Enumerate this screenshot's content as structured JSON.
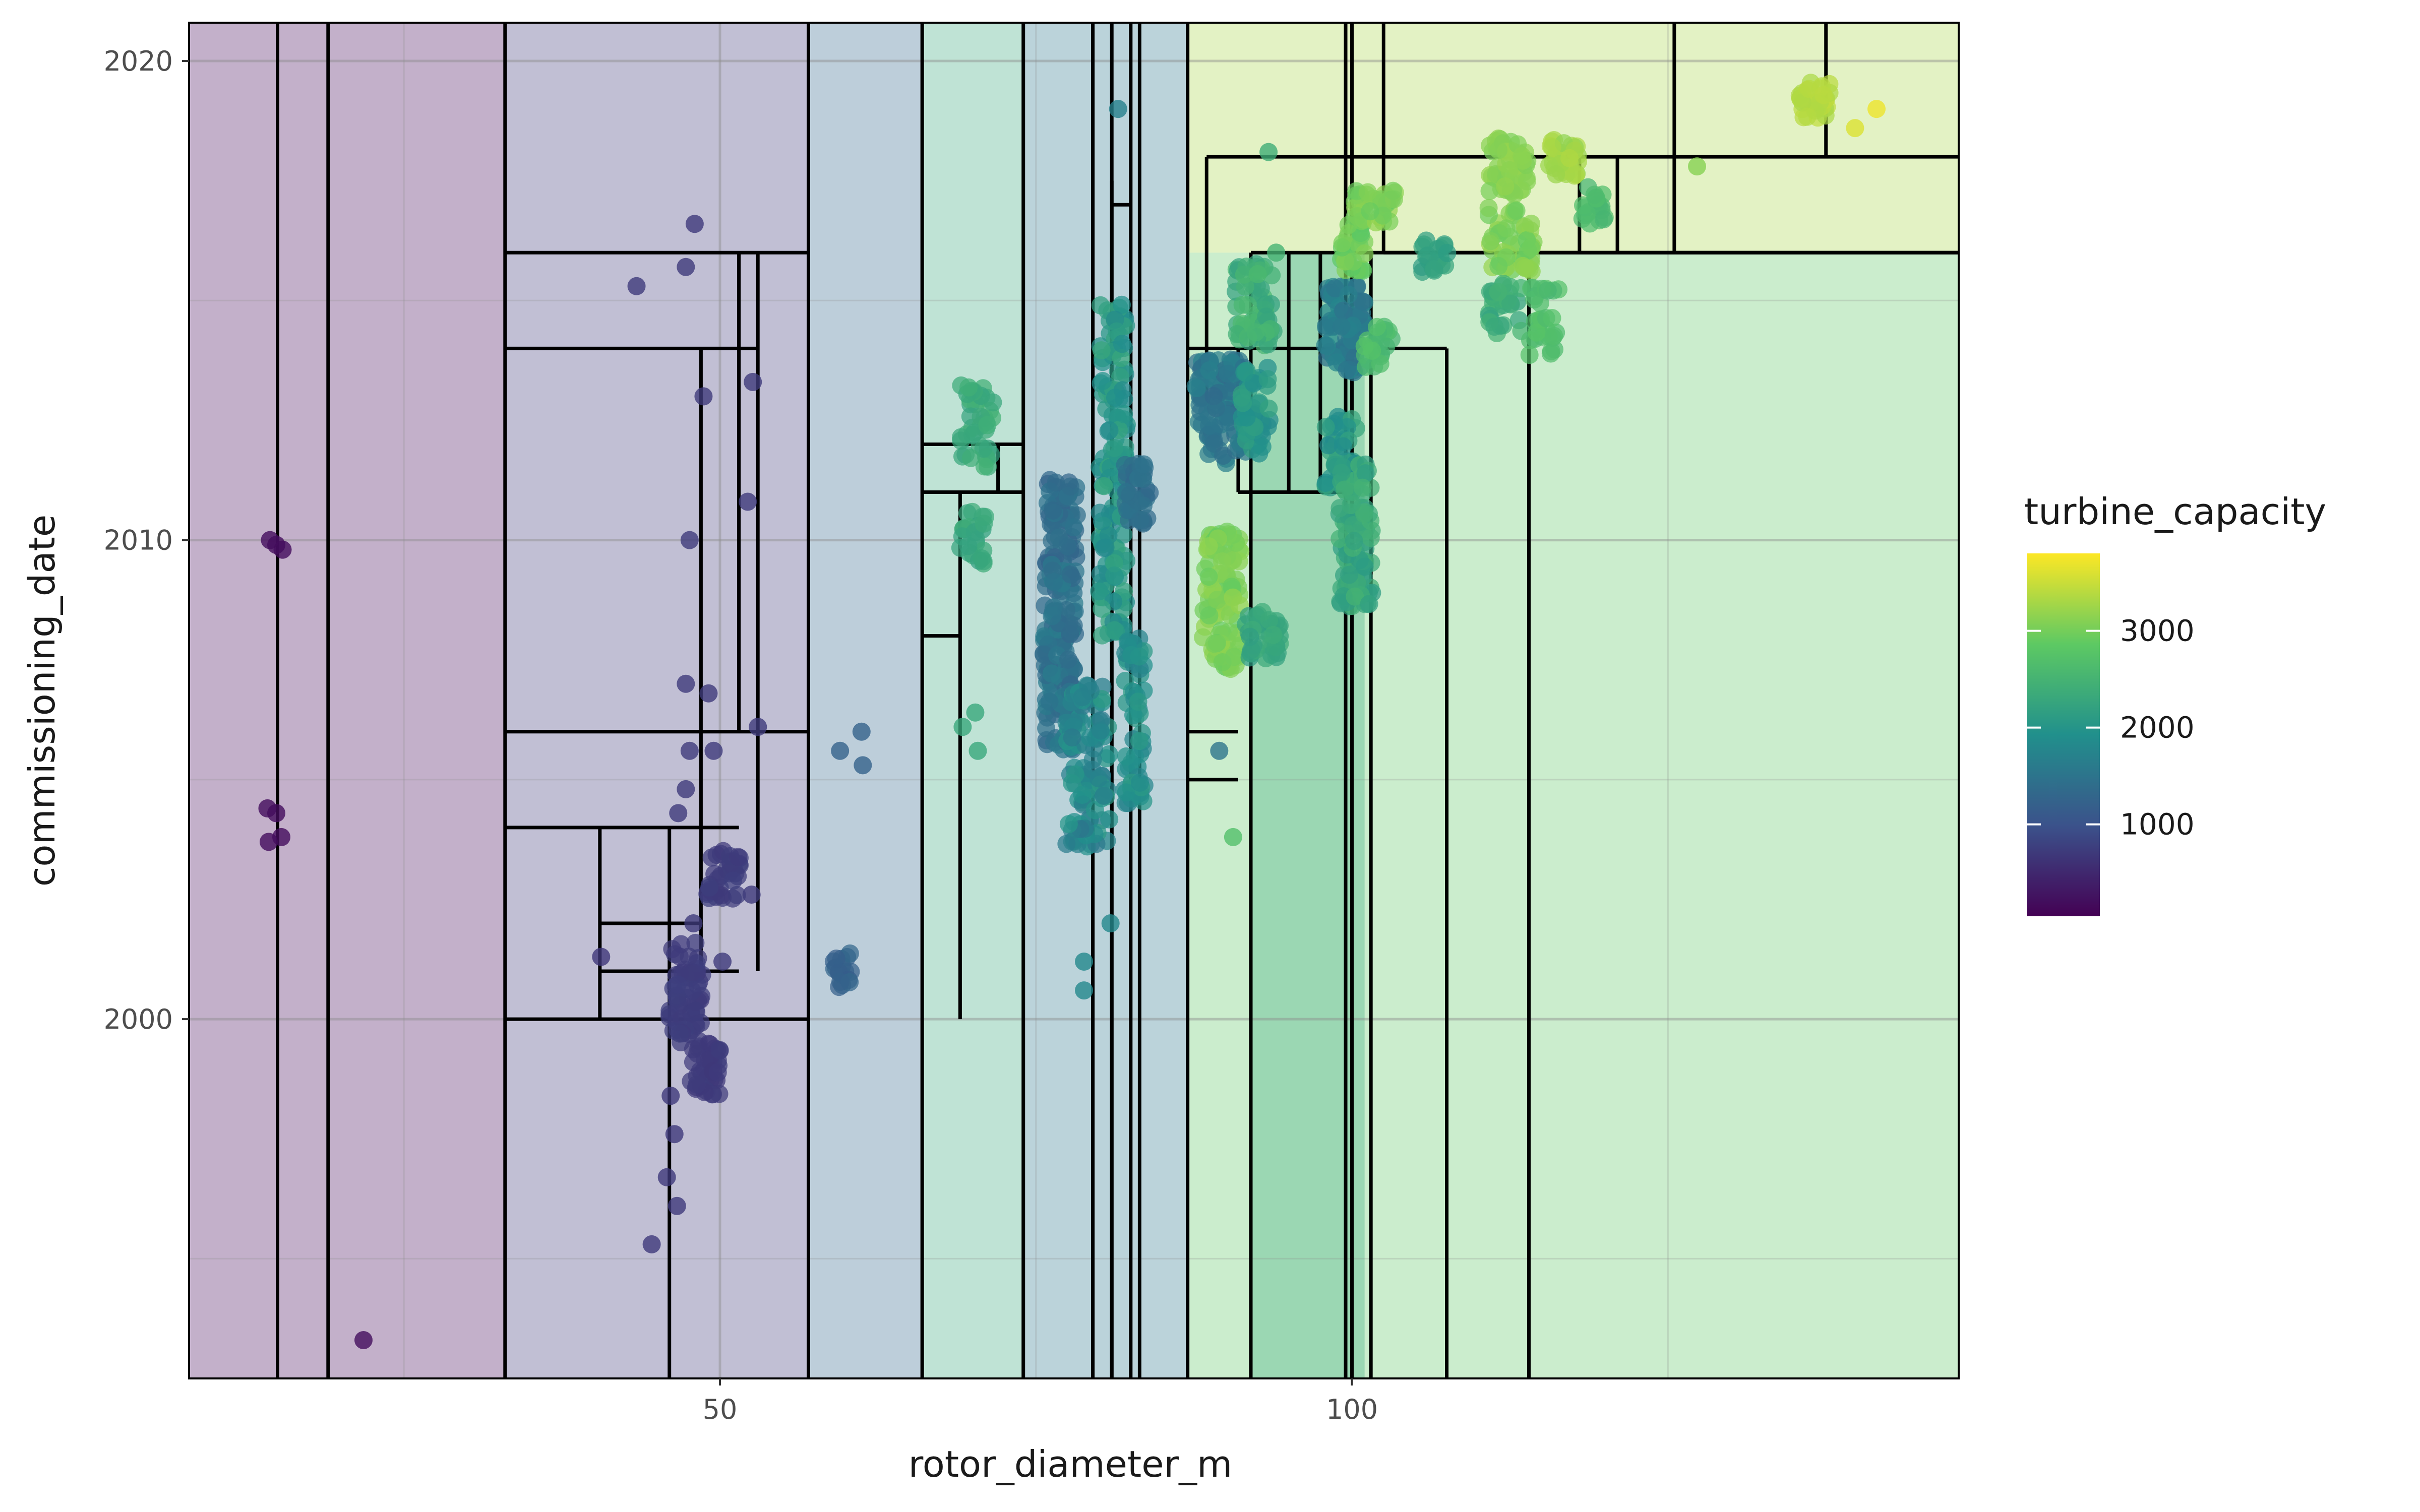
{
  "chart_data": {
    "type": "scatter",
    "title": "",
    "xlabel": "rotor_diameter_m",
    "ylabel": "commissioning_date",
    "xlim": [
      8,
      148
    ],
    "ylim": [
      1992.5,
      2020.8
    ],
    "x_ticks": [
      {
        "value": 50,
        "label": "50"
      },
      {
        "value": 100,
        "label": "100"
      }
    ],
    "y_ticks": [
      {
        "value": 2000,
        "label": "2000"
      },
      {
        "value": 2010,
        "label": "2010"
      },
      {
        "value": 2020,
        "label": "2020"
      }
    ],
    "x_minor_grid": [
      25,
      75,
      125
    ],
    "y_minor_grid": [
      1995,
      2005,
      2015
    ],
    "grid": true,
    "color_scale": "viridis",
    "color_stops": [
      "#440154",
      "#3b528b",
      "#21908c",
      "#5dc963",
      "#fde725"
    ],
    "legend": {
      "title": "turbine_capacity",
      "position": "right",
      "range": [
        50,
        3800
      ],
      "breaks": [
        {
          "value": 1000,
          "label": "1000"
        },
        {
          "value": 2000,
          "label": "2000"
        },
        {
          "value": 3000,
          "label": "3000"
        }
      ]
    },
    "partition_rects": [
      {
        "x0": 8,
        "x1": 33,
        "y0": 1992.5,
        "y1": 2020.8,
        "fill": 150
      },
      {
        "x0": 33,
        "x1": 57,
        "y0": 1992.5,
        "y1": 2020.8,
        "fill": 700
      },
      {
        "x0": 57,
        "x1": 66,
        "y0": 1992.5,
        "y1": 2020.8,
        "fill": 1300
      },
      {
        "x0": 66,
        "x1": 74,
        "y0": 1992.5,
        "y1": 2020.8,
        "fill": 2300
      },
      {
        "x0": 74,
        "x1": 87,
        "y0": 1992.5,
        "y1": 2020.8,
        "fill": 1550
      },
      {
        "x0": 87,
        "x1": 148,
        "y0": 1992.5,
        "y1": 2016,
        "fill": 2850
      },
      {
        "x0": 92,
        "x1": 101,
        "y0": 1992.5,
        "y1": 2016,
        "fill": 2300
      },
      {
        "x0": 87,
        "x1": 148,
        "y0": 2016,
        "y1": 2020.8,
        "fill": 3300
      }
    ],
    "partition_vlines": [
      {
        "x": 15,
        "y0": 1992.5,
        "y1": 2020.8
      },
      {
        "x": 19,
        "y0": 1992.5,
        "y1": 2020.8
      },
      {
        "x": 33,
        "y0": 1992.5,
        "y1": 2020.8
      },
      {
        "x": 57,
        "y0": 1992.5,
        "y1": 2020.8
      },
      {
        "x": 66,
        "y0": 1992.5,
        "y1": 2020.8
      },
      {
        "x": 74,
        "y0": 1992.5,
        "y1": 2020.8
      },
      {
        "x": 79.5,
        "y0": 1992.5,
        "y1": 2020.8
      },
      {
        "x": 81,
        "y0": 1992.5,
        "y1": 2020.8
      },
      {
        "x": 82.5,
        "y0": 1992.5,
        "y1": 2020.8
      },
      {
        "x": 83.2,
        "y0": 1992.5,
        "y1": 2020.8
      },
      {
        "x": 87,
        "y0": 1992.5,
        "y1": 2020.8
      },
      {
        "x": 99.5,
        "y0": 1992.5,
        "y1": 2020.8
      },
      {
        "x": 100,
        "y0": 1992.5,
        "y1": 2020.8
      },
      {
        "x": 101.5,
        "y0": 1992.5,
        "y1": 2016
      },
      {
        "x": 107.5,
        "y0": 1992.5,
        "y1": 2014
      },
      {
        "x": 114,
        "y0": 1992.5,
        "y1": 2016
      },
      {
        "x": 92,
        "y0": 1992.5,
        "y1": 2016
      },
      {
        "x": 46,
        "y0": 1992.5,
        "y1": 2004
      },
      {
        "x": 48.5,
        "y0": 2001,
        "y1": 2014
      },
      {
        "x": 51.5,
        "y0": 2006,
        "y1": 2016
      },
      {
        "x": 53,
        "y0": 2001,
        "y1": 2016
      },
      {
        "x": 40.5,
        "y0": 2000,
        "y1": 2004
      },
      {
        "x": 69,
        "y0": 2000,
        "y1": 2011
      },
      {
        "x": 72,
        "y0": 2011,
        "y1": 2012
      },
      {
        "x": 81,
        "y0": 1992.5,
        "y1": 2017.5
      },
      {
        "x": 88.5,
        "y0": 2013,
        "y1": 2018
      },
      {
        "x": 91,
        "y0": 2011,
        "y1": 2014
      },
      {
        "x": 95,
        "y0": 2011,
        "y1": 2016
      },
      {
        "x": 102.5,
        "y0": 2016,
        "y1": 2020.8
      },
      {
        "x": 125.5,
        "y0": 2016,
        "y1": 2020.8
      },
      {
        "x": 137.5,
        "y0": 2018,
        "y1": 2020.8
      },
      {
        "x": 118,
        "y0": 2016,
        "y1": 2018
      },
      {
        "x": 121,
        "y0": 2016,
        "y1": 2018
      },
      {
        "x": 97.5,
        "y0": 2011,
        "y1": 2016
      }
    ],
    "partition_hlines": [
      {
        "y": 2016,
        "x0": 33,
        "x1": 57
      },
      {
        "y": 2014,
        "x0": 33,
        "x1": 53
      },
      {
        "y": 2006,
        "x0": 33,
        "x1": 57
      },
      {
        "y": 2004,
        "x0": 33,
        "x1": 51.5
      },
      {
        "y": 2002,
        "x0": 40.5,
        "x1": 48.5
      },
      {
        "y": 2001,
        "x0": 40.5,
        "x1": 51.5
      },
      {
        "y": 2000,
        "x0": 33,
        "x1": 57
      },
      {
        "y": 2012,
        "x0": 66,
        "x1": 74
      },
      {
        "y": 2011,
        "x0": 66,
        "x1": 74
      },
      {
        "y": 2008,
        "x0": 66,
        "x1": 69
      },
      {
        "y": 2017,
        "x0": 81,
        "x1": 82.5
      },
      {
        "y": 2006,
        "x0": 87,
        "x1": 91
      },
      {
        "y": 2005,
        "x0": 87,
        "x1": 91
      },
      {
        "y": 2014,
        "x0": 87,
        "x1": 107.5
      },
      {
        "y": 2016,
        "x0": 92,
        "x1": 148
      },
      {
        "y": 2018,
        "x0": 88.5,
        "x1": 148
      },
      {
        "y": 2016,
        "x0": 102.5,
        "x1": 148
      },
      {
        "y": 2011,
        "x0": 91,
        "x1": 99.5
      }
    ],
    "series": [
      {
        "name": "",
        "points": [
          {
            "x": 14.4,
            "y": 2010.0,
            "v": 180
          },
          {
            "x": 14.9,
            "y": 2009.9,
            "v": 180
          },
          {
            "x": 15.4,
            "y": 2009.8,
            "v": 180
          },
          {
            "x": 14.2,
            "y": 2004.4,
            "v": 180
          },
          {
            "x": 14.9,
            "y": 2004.3,
            "v": 180
          },
          {
            "x": 14.3,
            "y": 2003.7,
            "v": 180
          },
          {
            "x": 15.3,
            "y": 2003.8,
            "v": 180
          },
          {
            "x": 21.8,
            "y": 1993.3,
            "v": 200
          },
          {
            "x": 48.0,
            "y": 2016.6,
            "v": 700
          },
          {
            "x": 43.4,
            "y": 2015.3,
            "v": 720
          },
          {
            "x": 48.7,
            "y": 2013.0,
            "v": 720
          },
          {
            "x": 52.6,
            "y": 2013.3,
            "v": 720
          },
          {
            "x": 52.2,
            "y": 2010.8,
            "v": 720
          },
          {
            "x": 47.6,
            "y": 2010.0,
            "v": 720
          },
          {
            "x": 47.3,
            "y": 2007.0,
            "v": 720
          },
          {
            "x": 49.1,
            "y": 2006.8,
            "v": 720
          },
          {
            "x": 53.0,
            "y": 2006.1,
            "v": 720
          },
          {
            "x": 47.6,
            "y": 2005.6,
            "v": 720
          },
          {
            "x": 49.5,
            "y": 2005.6,
            "v": 720
          },
          {
            "x": 47.3,
            "y": 2004.8,
            "v": 720
          },
          {
            "x": 46.7,
            "y": 2004.3,
            "v": 720
          },
          {
            "x": 52.5,
            "y": 2002.6,
            "v": 720
          },
          {
            "x": 47.9,
            "y": 2002.0,
            "v": 720
          },
          {
            "x": 40.6,
            "y": 2001.3,
            "v": 680
          },
          {
            "x": 50.2,
            "y": 2001.2,
            "v": 720
          },
          {
            "x": 46.1,
            "y": 1998.4,
            "v": 700
          },
          {
            "x": 46.4,
            "y": 1997.6,
            "v": 700
          },
          {
            "x": 45.8,
            "y": 1996.7,
            "v": 700
          },
          {
            "x": 46.6,
            "y": 1996.1,
            "v": 700
          },
          {
            "x": 44.6,
            "y": 1995.3,
            "v": 700
          },
          {
            "x": 47.3,
            "y": 2015.7,
            "v": 720
          },
          {
            "x": 59.5,
            "y": 2005.6,
            "v": 1250
          },
          {
            "x": 61.2,
            "y": 2006.0,
            "v": 1250
          },
          {
            "x": 61.3,
            "y": 2005.3,
            "v": 1250
          },
          {
            "x": 70.2,
            "y": 2006.4,
            "v": 2300
          },
          {
            "x": 69.2,
            "y": 2006.1,
            "v": 2300
          },
          {
            "x": 70.4,
            "y": 2005.6,
            "v": 2300
          },
          {
            "x": 80.9,
            "y": 2002.0,
            "v": 1800
          },
          {
            "x": 78.8,
            "y": 2001.2,
            "v": 1800
          },
          {
            "x": 78.8,
            "y": 2000.6,
            "v": 1800
          },
          {
            "x": 89.5,
            "y": 2005.6,
            "v": 1500
          },
          {
            "x": 90.6,
            "y": 2003.8,
            "v": 2700
          },
          {
            "x": 81.5,
            "y": 2019.0,
            "v": 1700
          },
          {
            "x": 93.4,
            "y": 2018.1,
            "v": 2400
          },
          {
            "x": 94.0,
            "y": 2016.0,
            "v": 2500
          },
          {
            "x": 127.3,
            "y": 2017.8,
            "v": 3100
          },
          {
            "x": 139.8,
            "y": 2018.6,
            "v": 3600
          },
          {
            "x": 141.5,
            "y": 2019.0,
            "v": 3700
          }
        ]
      }
    ],
    "clusters": [
      {
        "x0": 46.0,
        "x1": 48.6,
        "y0": 1999.5,
        "y1": 2001.6,
        "v0": 700,
        "v1": 760,
        "n": 60
      },
      {
        "x0": 47.6,
        "x1": 50.0,
        "y0": 1998.4,
        "y1": 1999.6,
        "v0": 680,
        "v1": 740,
        "n": 40
      },
      {
        "x0": 49.0,
        "x1": 51.6,
        "y0": 2002.5,
        "y1": 2003.6,
        "v0": 700,
        "v1": 760,
        "n": 36
      },
      {
        "x0": 59.0,
        "x1": 60.4,
        "y0": 2000.6,
        "y1": 2001.4,
        "v0": 1150,
        "v1": 1300,
        "n": 18
      },
      {
        "x0": 69.0,
        "x1": 71.6,
        "y0": 2011.5,
        "y1": 2013.3,
        "v0": 2200,
        "v1": 2500,
        "n": 40
      },
      {
        "x0": 69.0,
        "x1": 71.0,
        "y0": 2009.5,
        "y1": 2010.6,
        "v0": 2100,
        "v1": 2400,
        "n": 24
      },
      {
        "x0": 75.8,
        "x1": 78.4,
        "y0": 2009.5,
        "y1": 2011.4,
        "v0": 1250,
        "v1": 1500,
        "n": 60
      },
      {
        "x0": 75.6,
        "x1": 78.2,
        "y0": 2005.6,
        "y1": 2009.5,
        "v0": 1300,
        "v1": 1650,
        "n": 130
      },
      {
        "x0": 77.4,
        "x1": 80.8,
        "y0": 2003.6,
        "y1": 2007.0,
        "v0": 1500,
        "v1": 2100,
        "n": 110
      },
      {
        "x0": 80.0,
        "x1": 82.2,
        "y0": 2008.0,
        "y1": 2015.0,
        "v0": 1800,
        "v1": 2300,
        "n": 150
      },
      {
        "x0": 82.0,
        "x1": 84.0,
        "y0": 2010.3,
        "y1": 2011.6,
        "v0": 1300,
        "v1": 1500,
        "n": 40
      },
      {
        "x0": 82.0,
        "x1": 83.6,
        "y0": 2004.5,
        "y1": 2008.0,
        "v0": 1700,
        "v1": 2100,
        "n": 60
      },
      {
        "x0": 87.6,
        "x1": 91.6,
        "y0": 2011.6,
        "y1": 2013.8,
        "v0": 1350,
        "v1": 1700,
        "n": 110
      },
      {
        "x0": 88.2,
        "x1": 91.2,
        "y0": 2007.3,
        "y1": 2010.2,
        "v0": 2900,
        "v1": 3200,
        "n": 110
      },
      {
        "x0": 90.8,
        "x1": 93.8,
        "y0": 2014.0,
        "y1": 2015.8,
        "v0": 2200,
        "v1": 2600,
        "n": 60
      },
      {
        "x0": 91.2,
        "x1": 93.6,
        "y0": 2011.8,
        "y1": 2013.6,
        "v0": 1800,
        "v1": 2200,
        "n": 50
      },
      {
        "x0": 91.6,
        "x1": 94.4,
        "y0": 2007.5,
        "y1": 2008.6,
        "v0": 2100,
        "v1": 2400,
        "n": 36
      },
      {
        "x0": 97.8,
        "x1": 101.0,
        "y0": 2013.5,
        "y1": 2015.3,
        "v0": 1400,
        "v1": 1800,
        "n": 80
      },
      {
        "x0": 97.8,
        "x1": 100.4,
        "y0": 2011.0,
        "y1": 2012.6,
        "v0": 1850,
        "v1": 2300,
        "n": 50
      },
      {
        "x0": 99.0,
        "x1": 101.6,
        "y0": 2008.6,
        "y1": 2011.6,
        "v0": 2100,
        "v1": 2500,
        "n": 90
      },
      {
        "x0": 99.0,
        "x1": 101.0,
        "y0": 2015.6,
        "y1": 2016.7,
        "v0": 2800,
        "v1": 3100,
        "n": 30
      },
      {
        "x0": 100.2,
        "x1": 103.4,
        "y0": 2016.6,
        "y1": 2017.3,
        "v0": 2900,
        "v1": 3200,
        "n": 36
      },
      {
        "x0": 101.0,
        "x1": 103.4,
        "y0": 2013.6,
        "y1": 2014.5,
        "v0": 2500,
        "v1": 2800,
        "n": 24
      },
      {
        "x0": 105.5,
        "x1": 107.6,
        "y0": 2015.6,
        "y1": 2016.3,
        "v0": 2100,
        "v1": 2300,
        "n": 20
      },
      {
        "x0": 110.8,
        "x1": 114.0,
        "y0": 2017.2,
        "y1": 2018.4,
        "v0": 3000,
        "v1": 3200,
        "n": 50
      },
      {
        "x0": 110.8,
        "x1": 114.4,
        "y0": 2015.6,
        "y1": 2017.0,
        "v0": 2900,
        "v1": 3200,
        "n": 50
      },
      {
        "x0": 110.8,
        "x1": 113.4,
        "y0": 2014.2,
        "y1": 2015.4,
        "v0": 2200,
        "v1": 2500,
        "n": 30
      },
      {
        "x0": 114.0,
        "x1": 116.4,
        "y0": 2013.8,
        "y1": 2015.3,
        "v0": 2500,
        "v1": 2800,
        "n": 30
      },
      {
        "x0": 115.6,
        "x1": 118.0,
        "y0": 2017.6,
        "y1": 2018.4,
        "v0": 3150,
        "v1": 3350,
        "n": 30
      },
      {
        "x0": 118.2,
        "x1": 120.4,
        "y0": 2016.5,
        "y1": 2017.4,
        "v0": 2500,
        "v1": 2700,
        "n": 20
      },
      {
        "x0": 135.4,
        "x1": 137.8,
        "y0": 2018.8,
        "y1": 2019.6,
        "v0": 3300,
        "v1": 3450,
        "n": 30
      }
    ]
  }
}
